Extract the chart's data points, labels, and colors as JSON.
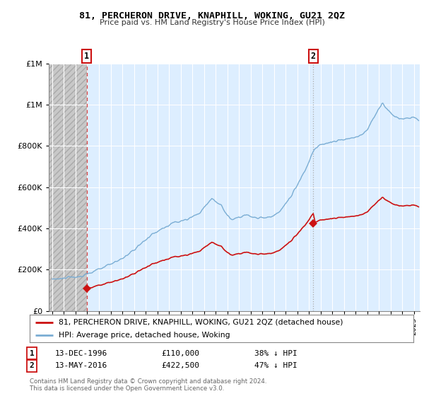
{
  "title": "81, PERCHERON DRIVE, KNAPHILL, WOKING, GU21 2QZ",
  "subtitle": "Price paid vs. HM Land Registry's House Price Index (HPI)",
  "sale1_price": 110000,
  "sale2_price": 422500,
  "hpi_color": "#7aadd4",
  "price_color": "#cc1111",
  "sale1_line_color": "#dd4444",
  "sale2_line_color": "#aaaaaa",
  "bg_hatch_color": "#cccccc",
  "bg_blue_color": "#ddeeff",
  "ylim": [
    0,
    1200000
  ],
  "yticks": [
    0,
    200000,
    400000,
    600000,
    800000,
    1000000,
    1200000
  ],
  "xlim_start": 1993.7,
  "xlim_end": 2025.5,
  "footer": "Contains HM Land Registry data © Crown copyright and database right 2024.\nThis data is licensed under the Open Government Licence v3.0.",
  "legend_line1": "81, PERCHERON DRIVE, KNAPHILL, WOKING, GU21 2QZ (detached house)",
  "legend_line2": "HPI: Average price, detached house, Woking"
}
